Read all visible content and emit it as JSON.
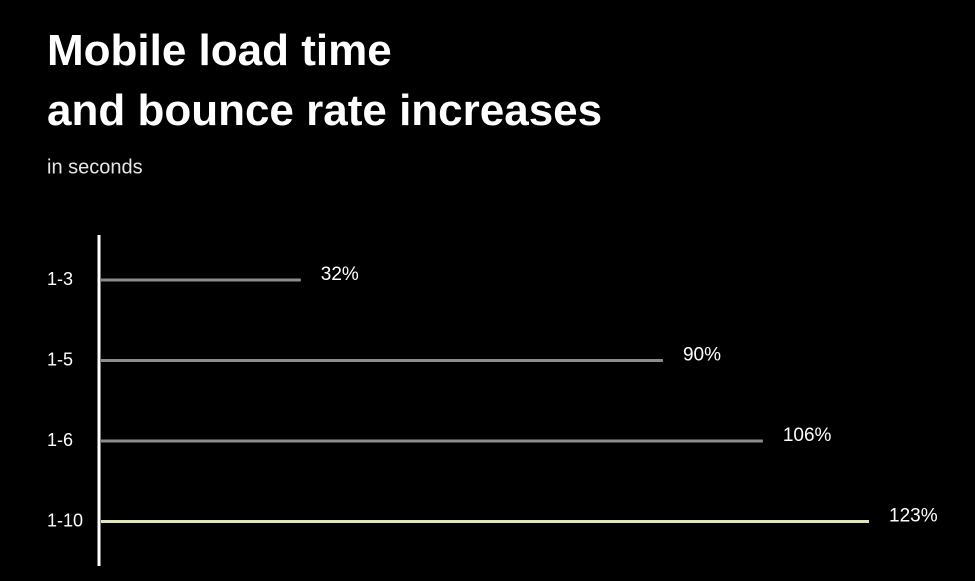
{
  "chart_data": {
    "type": "bar",
    "orientation": "horizontal",
    "title": [
      "Mobile load time",
      "and bounce rate increases"
    ],
    "subtitle": "in seconds",
    "categories": [
      "1-3",
      "1-5",
      "1-6",
      "1-10"
    ],
    "values": [
      32,
      90,
      106,
      123
    ],
    "value_labels": [
      "32%",
      "90%",
      "106%",
      "123%"
    ],
    "colors": [
      "#8c8c8c",
      "#8c8c8c",
      "#8c8c8c",
      "#dbe8b4"
    ]
  }
}
